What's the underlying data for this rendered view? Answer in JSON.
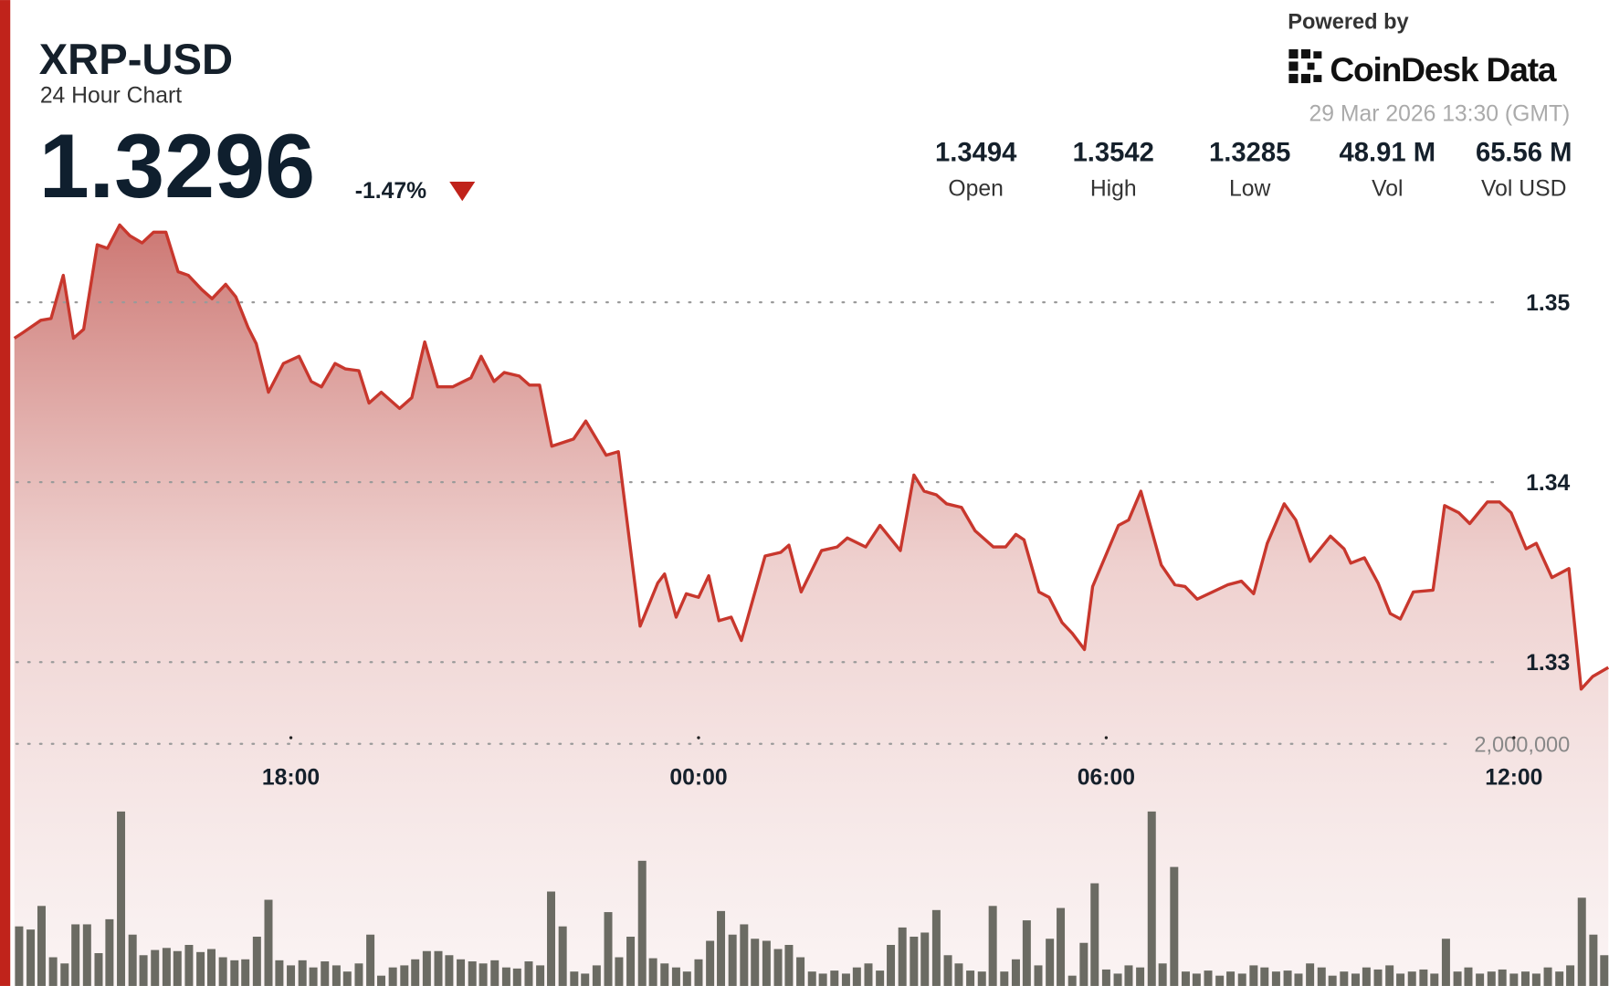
{
  "header": {
    "price": "1.3296",
    "change": "-1.47%",
    "powered_by": "Powered by",
    "brand": "CoinDesk Data",
    "timestamp": "29 Mar 2026 13:30 (GMT)",
    "stats": [
      {
        "value": "1.3494",
        "label": "Open"
      },
      {
        "value": "1.3542",
        "label": "High"
      },
      {
        "value": "1.3285",
        "label": "Low"
      },
      {
        "value": "48.91 M",
        "label": "Vol"
      },
      {
        "value": "65.56 M",
        "label": "Vol USD"
      }
    ]
  },
  "chart_data": {
    "type": "line",
    "title": "XRP-USD",
    "subtitle": "24 Hour Chart",
    "color": "#c8372d",
    "grid": true,
    "xlim": [
      0.4,
      23.9
    ],
    "xticks": [
      {
        "value": 4.5,
        "label": "18:00"
      },
      {
        "value": 10.5,
        "label": "00:00"
      },
      {
        "value": 16.5,
        "label": "06:00"
      },
      {
        "value": 22.5,
        "label": "12:00"
      }
    ],
    "ylim": [
      1.312,
      1.3668
    ],
    "yticks": [
      1.33,
      1.34,
      1.35
    ],
    "x": [
      0.43,
      0.55,
      0.82,
      0.97,
      1.15,
      1.3,
      1.45,
      1.65,
      1.8,
      1.98,
      2.13,
      2.31,
      2.48,
      2.66,
      2.84,
      2.99,
      3.19,
      3.34,
      3.54,
      3.69,
      3.87,
      3.99,
      4.17,
      4.39,
      4.62,
      4.8,
      4.95,
      5.15,
      5.3,
      5.5,
      5.65,
      5.83,
      6.1,
      6.28,
      6.47,
      6.66,
      6.88,
      7.15,
      7.3,
      7.49,
      7.64,
      7.86,
      8.01,
      8.16,
      8.34,
      8.66,
      8.84,
      9.14,
      9.32,
      9.64,
      9.9,
      10.0,
      10.17,
      10.32,
      10.5,
      10.65,
      10.8,
      10.98,
      11.13,
      11.48,
      11.71,
      11.83,
      12.01,
      12.31,
      12.54,
      12.69,
      12.96,
      13.17,
      13.47,
      13.67,
      13.82,
      14.0,
      14.15,
      14.37,
      14.57,
      14.84,
      15.02,
      15.17,
      15.29,
      15.51,
      15.66,
      15.85,
      16.0,
      16.18,
      16.3,
      16.68,
      16.83,
      17.01,
      17.31,
      17.51,
      17.66,
      17.84,
      18.29,
      18.49,
      18.67,
      18.87,
      19.12,
      19.29,
      19.5,
      19.8,
      20.0,
      20.1,
      20.3,
      20.5,
      20.68,
      20.83,
      21.02,
      21.31,
      21.48,
      21.69,
      21.85,
      22.11,
      22.29,
      22.46,
      22.68,
      22.83,
      23.06,
      23.31,
      23.49,
      23.66,
      23.89
    ],
    "values": [
      1.348,
      1.3483,
      1.349,
      1.3491,
      1.3515,
      1.348,
      1.3485,
      1.3532,
      1.353,
      1.3543,
      1.3537,
      1.3533,
      1.3539,
      1.3539,
      1.3517,
      1.3515,
      1.3507,
      1.3502,
      1.351,
      1.3503,
      1.3486,
      1.3477,
      1.345,
      1.3466,
      1.347,
      1.3456,
      1.3453,
      1.3466,
      1.3463,
      1.3462,
      1.3444,
      1.345,
      1.3441,
      1.3447,
      1.3478,
      1.3453,
      1.3453,
      1.3458,
      1.347,
      1.3456,
      1.3461,
      1.3459,
      1.3454,
      1.3454,
      1.342,
      1.3424,
      1.3434,
      1.3415,
      1.3417,
      1.332,
      1.3344,
      1.3349,
      1.3325,
      1.3338,
      1.3336,
      1.3348,
      1.3323,
      1.3325,
      1.3312,
      1.3359,
      1.3361,
      1.3365,
      1.3339,
      1.3362,
      1.3364,
      1.3369,
      1.3364,
      1.3376,
      1.3362,
      1.3404,
      1.3395,
      1.3393,
      1.3388,
      1.3386,
      1.3373,
      1.3364,
      1.3364,
      1.3371,
      1.3368,
      1.3339,
      1.3336,
      1.3322,
      1.3316,
      1.3307,
      1.3342,
      1.3376,
      1.3379,
      1.3395,
      1.3354,
      1.3343,
      1.3342,
      1.3335,
      1.3343,
      1.3345,
      1.3338,
      1.3366,
      1.3388,
      1.3379,
      1.3356,
      1.337,
      1.3363,
      1.3355,
      1.3358,
      1.3344,
      1.3327,
      1.3324,
      1.3339,
      1.334,
      1.3387,
      1.3383,
      1.3377,
      1.3389,
      1.3389,
      1.3383,
      1.3363,
      1.3366,
      1.3347,
      1.3352,
      1.3285,
      1.3292,
      1.3297
    ],
    "volume": {
      "type": "bar",
      "color": "#6b6b63",
      "ylim": [
        0,
        8144000
      ],
      "yticks": [
        {
          "value": 2000000,
          "label": "2,000,000"
        }
      ],
      "x": [
        0.5,
        0.67,
        0.83,
        1,
        1.17,
        1.33,
        1.5,
        1.67,
        1.83,
        2,
        2.17,
        2.33,
        2.5,
        2.67,
        2.83,
        3,
        3.17,
        3.33,
        3.5,
        3.67,
        3.83,
        4,
        4.17,
        4.33,
        4.5,
        4.67,
        4.83,
        5,
        5.17,
        5.33,
        5.5,
        5.67,
        5.83,
        6,
        6.17,
        6.33,
        6.5,
        6.67,
        6.83,
        7,
        7.17,
        7.33,
        7.5,
        7.67,
        7.83,
        8,
        8.17,
        8.33,
        8.5,
        8.67,
        8.83,
        9,
        9.17,
        9.33,
        9.5,
        9.67,
        9.83,
        10,
        10.17,
        10.33,
        10.5,
        10.67,
        10.83,
        11,
        11.17,
        11.33,
        11.5,
        11.67,
        11.83,
        12,
        12.17,
        12.33,
        12.5,
        12.67,
        12.83,
        13,
        13.17,
        13.33,
        13.5,
        13.67,
        13.83,
        14,
        14.17,
        14.33,
        14.5,
        14.67,
        14.83,
        15,
        15.17,
        15.33,
        15.5,
        15.67,
        15.83,
        16,
        16.17,
        16.33,
        16.5,
        16.67,
        16.83,
        17,
        17.17,
        17.33,
        17.5,
        17.67,
        17.83,
        18,
        18.17,
        18.33,
        18.5,
        18.67,
        18.83,
        19,
        19.17,
        19.33,
        19.5,
        19.67,
        19.83,
        20,
        20.17,
        20.33,
        20.5,
        20.67,
        20.83,
        21,
        21.17,
        21.33,
        21.5,
        21.67,
        21.83,
        22,
        22.17,
        22.33,
        22.5,
        22.67,
        22.83,
        23,
        23.17,
        23.33,
        23.5,
        23.67,
        23.83
      ],
      "values": [
        492000,
        466000,
        661000,
        237000,
        186000,
        509000,
        509000,
        271000,
        551000,
        1441000,
        424000,
        254000,
        297000,
        314000,
        288000,
        339000,
        280000,
        305000,
        237000,
        212000,
        220000,
        407000,
        712000,
        212000,
        170000,
        212000,
        153000,
        203000,
        170000,
        119000,
        186000,
        424000,
        85000,
        153000,
        170000,
        220000,
        288000,
        288000,
        254000,
        220000,
        203000,
        186000,
        212000,
        153000,
        144000,
        203000,
        170000,
        780000,
        492000,
        119000,
        102000,
        170000,
        610000,
        237000,
        407000,
        1034000,
        229000,
        186000,
        153000,
        119000,
        220000,
        373000,
        619000,
        424000,
        509000,
        390000,
        373000,
        305000,
        339000,
        237000,
        119000,
        102000,
        127000,
        102000,
        153000,
        186000,
        127000,
        339000,
        483000,
        407000,
        441000,
        627000,
        254000,
        186000,
        127000,
        119000,
        661000,
        119000,
        220000,
        542000,
        170000,
        390000,
        644000,
        85000,
        356000,
        848000,
        136000,
        102000,
        170000,
        153000,
        1441000,
        186000,
        983000,
        119000,
        102000,
        127000,
        85000,
        119000,
        102000,
        170000,
        153000,
        119000,
        127000,
        102000,
        186000,
        153000,
        85000,
        119000,
        102000,
        153000,
        136000,
        170000,
        102000,
        119000,
        136000,
        102000,
        390000,
        119000,
        153000,
        102000,
        119000,
        136000,
        102000,
        119000,
        102000,
        153000,
        119000,
        170000,
        729000,
        424000,
        254000
      ]
    }
  }
}
